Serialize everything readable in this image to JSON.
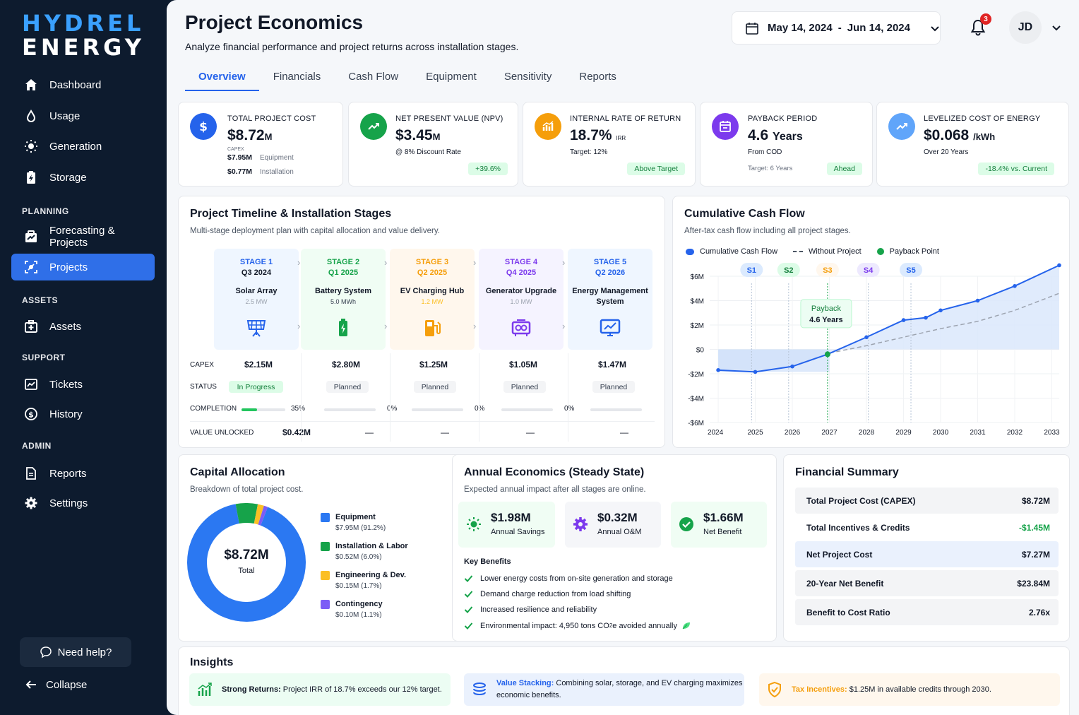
{
  "brand": {
    "line1": "HYDREL",
    "line2": "ENERGY"
  },
  "nav": {
    "items": [
      {
        "label": "Dashboard"
      },
      {
        "label": "Usage"
      },
      {
        "label": "Generation"
      },
      {
        "label": "Storage"
      }
    ],
    "sections": {
      "planning": "PLANNING",
      "assets": "ASSETS",
      "support": "SUPPORT",
      "admin": "ADMIN"
    },
    "planning": [
      {
        "label": "Forecasting & Projects"
      },
      {
        "label": "Projects"
      }
    ],
    "assets": [
      {
        "label": "Assets"
      }
    ],
    "support": [
      {
        "label": "Tickets"
      },
      {
        "label": "History"
      }
    ],
    "admin": [
      {
        "label": "Reports"
      },
      {
        "label": "Settings"
      }
    ],
    "help": "Need help?",
    "collapse": "Collapse"
  },
  "header": {
    "title": "Project Economics",
    "subtitle": "Analyze financial performance and project returns across installation stages.",
    "date_start": "May 14, 2024",
    "date_sep": "-",
    "date_end": "Jun 14, 2024",
    "notifications": "3",
    "avatar": "JD"
  },
  "tabs": [
    "Overview",
    "Financials",
    "Cash Flow",
    "Equipment",
    "Sensitivity",
    "Reports"
  ],
  "kpis": {
    "cost": {
      "label": "TOTAL PROJECT COST",
      "value": "$8.72",
      "unit": "M",
      "cap_label": "CAPEX",
      "eq_value": "$7.95M",
      "eq_label": "Equipment",
      "in_value": "$0.77M",
      "in_label": "Installation"
    },
    "npv": {
      "label": "NET PRESENT VALUE (NPV)",
      "value": "$3.45",
      "unit": "M",
      "note": "@ 8% Discount Rate",
      "pill": "+39.6%"
    },
    "irr": {
      "label": "INTERNAL RATE OF RETURN",
      "value": "18.7%",
      "unit": "IRR",
      "note": "Target: 12%",
      "pill": "Above Target"
    },
    "payback": {
      "label": "PAYBACK PERIOD",
      "value": "4.6",
      "unit": "Years",
      "note": "From COD",
      "target": "Target: 6 Years",
      "pill": "Ahead"
    },
    "lcoe": {
      "label": "LEVELIZED COST OF ENERGY",
      "value": "$0.068",
      "unit": "/kWh",
      "note": "Over 20 Years",
      "pill": "-18.4% vs. Current"
    }
  },
  "timeline": {
    "title": "Project Timeline & Installation Stages",
    "subtitle": "Multi-stage deployment plan with capital allocation and value delivery.",
    "row_labels": {
      "capex": "CAPEX",
      "status": "STATUS",
      "completion": "COMPLETION",
      "value": "VALUE UNLOCKED"
    },
    "stages": [
      {
        "stage": "STAGE 1",
        "quarter": "Q3 2024",
        "name": "Solar Array",
        "name2": "",
        "capacity": "2.5 MW",
        "capex": "$2.15M",
        "status": "In Progress",
        "completion": 35,
        "completion_label": "35%",
        "value": "$0.42M",
        "color": "#2563eb",
        "bg": "#eff6ff"
      },
      {
        "stage": "STAGE 2",
        "quarter": "Q1 2025",
        "name": "Battery System",
        "name2": "",
        "capacity": "5.0 MWh",
        "capex": "$2.80M",
        "status": "Planned",
        "completion": 0,
        "completion_label": "0%",
        "value": "—",
        "color": "#16a34a",
        "bg": "#f0fdf4"
      },
      {
        "stage": "STAGE 3",
        "quarter": "Q2 2025",
        "name": "EV Charging Hub",
        "name2": "",
        "capacity": "1.2 MW",
        "capex": "$1.25M",
        "status": "Planned",
        "completion": 0,
        "completion_label": "0%",
        "value": "—",
        "color": "#f59e0b",
        "bg": "#fff7ed"
      },
      {
        "stage": "STAGE 4",
        "quarter": "Q4 2025",
        "name": "Generator Upgrade",
        "name2": "",
        "capacity": "1.0 MW",
        "capex": "$1.05M",
        "status": "Planned",
        "completion": 0,
        "completion_label": "0%",
        "value": "—",
        "color": "#7c3aed",
        "bg": "#f5f3ff"
      },
      {
        "stage": "STAGE 5",
        "quarter": "Q2 2026",
        "name": "Energy Management",
        "name2": "System",
        "capacity": "",
        "capex": "$1.47M",
        "status": "Planned",
        "completion": 0,
        "completion_label": "",
        "value": "—",
        "color": "#2563eb",
        "bg": "#eff6ff"
      }
    ]
  },
  "cashflow": {
    "title": "Cumulative Cash Flow",
    "subtitle": "After-tax cash flow including all project stages.",
    "legend": [
      "Cumulative Cash Flow",
      "Without Project",
      "Payback Point"
    ],
    "callout_title": "Payback",
    "callout_value": "4.6 Years"
  },
  "chart_data": {
    "type": "line",
    "title": "Cumulative Cash Flow",
    "x": [
      2024,
      2025,
      2026,
      2027,
      2028,
      2029,
      2030,
      2031,
      2032,
      2033
    ],
    "y_ticks": [
      "$6M",
      "$4M",
      "$2M",
      "$0",
      "-$2M",
      "-$4M",
      "-$6M"
    ],
    "ylim": [
      -6,
      6
    ],
    "series": [
      {
        "name": "Cumulative Cash Flow",
        "x": [
          2024,
          2025,
          2026,
          2026.95,
          2028,
          2029,
          2029.6,
          2030,
          2031,
          2032,
          2033.2
        ],
        "values": [
          -1.7,
          -1.85,
          -1.4,
          -0.4,
          1.0,
          2.4,
          2.6,
          3.2,
          4.0,
          5.2,
          6.9
        ]
      },
      {
        "name": "Without Project",
        "x": [
          2027,
          2028,
          2029,
          2030,
          2031,
          2032,
          2033.2
        ],
        "values": [
          -0.3,
          0.3,
          1.0,
          1.7,
          2.3,
          3.2,
          4.6
        ]
      }
    ],
    "stage_markers": [
      {
        "label": "S1",
        "x": 2024.9
      },
      {
        "label": "S2",
        "x": 2025.9
      },
      {
        "label": "S3",
        "x": 2026.95
      },
      {
        "label": "S4",
        "x": 2028.05
      },
      {
        "label": "S5",
        "x": 2029.2
      }
    ],
    "payback_x": 2026.95
  },
  "capital": {
    "title": "Capital Allocation",
    "subtitle": "Breakdown of total project cost.",
    "center_value": "$8.72M",
    "center_label": "Total",
    "items": [
      {
        "name": "Equipment",
        "detail": "$7.95M (91.2%)",
        "pct": 91.2,
        "color": "#2b78f2"
      },
      {
        "name": "Installation & Labor",
        "detail": "$0.52M (6.0%)",
        "pct": 6.0,
        "color": "#16a34a"
      },
      {
        "name": "Engineering & Dev.",
        "detail": "$0.15M (1.7%)",
        "pct": 1.7,
        "color": "#fbbf24"
      },
      {
        "name": "Contingency",
        "detail": "$0.10M (1.1%)",
        "pct": 1.1,
        "color": "#7c5cf6"
      }
    ]
  },
  "annual": {
    "title": "Annual Economics (Steady State)",
    "subtitle": "Expected annual impact after all stages are online.",
    "boxes": [
      {
        "value": "$1.98M",
        "label": "Annual Savings"
      },
      {
        "value": "$0.32M",
        "label": "Annual O&M"
      },
      {
        "value": "$1.66M",
        "label": "Net Benefit"
      }
    ],
    "benefits_title": "Key Benefits",
    "benefits": [
      "Lower energy costs from on-site generation and storage",
      "Demand charge reduction from load shifting",
      "Increased resilience and reliability"
    ],
    "env_prefix": "Environmental impact: 4,950 tons CO",
    "env_sub": "2",
    "env_suffix": "e avoided annually"
  },
  "summary": {
    "title": "Financial Summary",
    "rows": [
      {
        "label": "Total Project Cost (CAPEX)",
        "value": "$8.72M"
      },
      {
        "label": "Total Incentives & Credits",
        "value": "-$1.45M"
      },
      {
        "label": "Net Project Cost",
        "value": "$7.27M"
      },
      {
        "label": "20-Year Net Benefit",
        "value": "$23.84M"
      },
      {
        "label": "Benefit to Cost Ratio",
        "value": "2.76x"
      }
    ]
  },
  "insights": {
    "title": "Insights",
    "items": [
      {
        "bold": "Strong Returns:",
        "text": " Project IRR of 18.7% exceeds our 12% target."
      },
      {
        "bold": "Value Stacking:",
        "text": " Combining solar, storage, and EV charging maximizes economic benefits."
      },
      {
        "bold": "Tax Incentives:",
        "text": " $1.25M in available credits through 2030."
      }
    ]
  },
  "colors": {
    "accent": "#2563eb",
    "sidebar": "#0d1b2e",
    "success": "#16a34a",
    "warning": "#f59e0b"
  }
}
